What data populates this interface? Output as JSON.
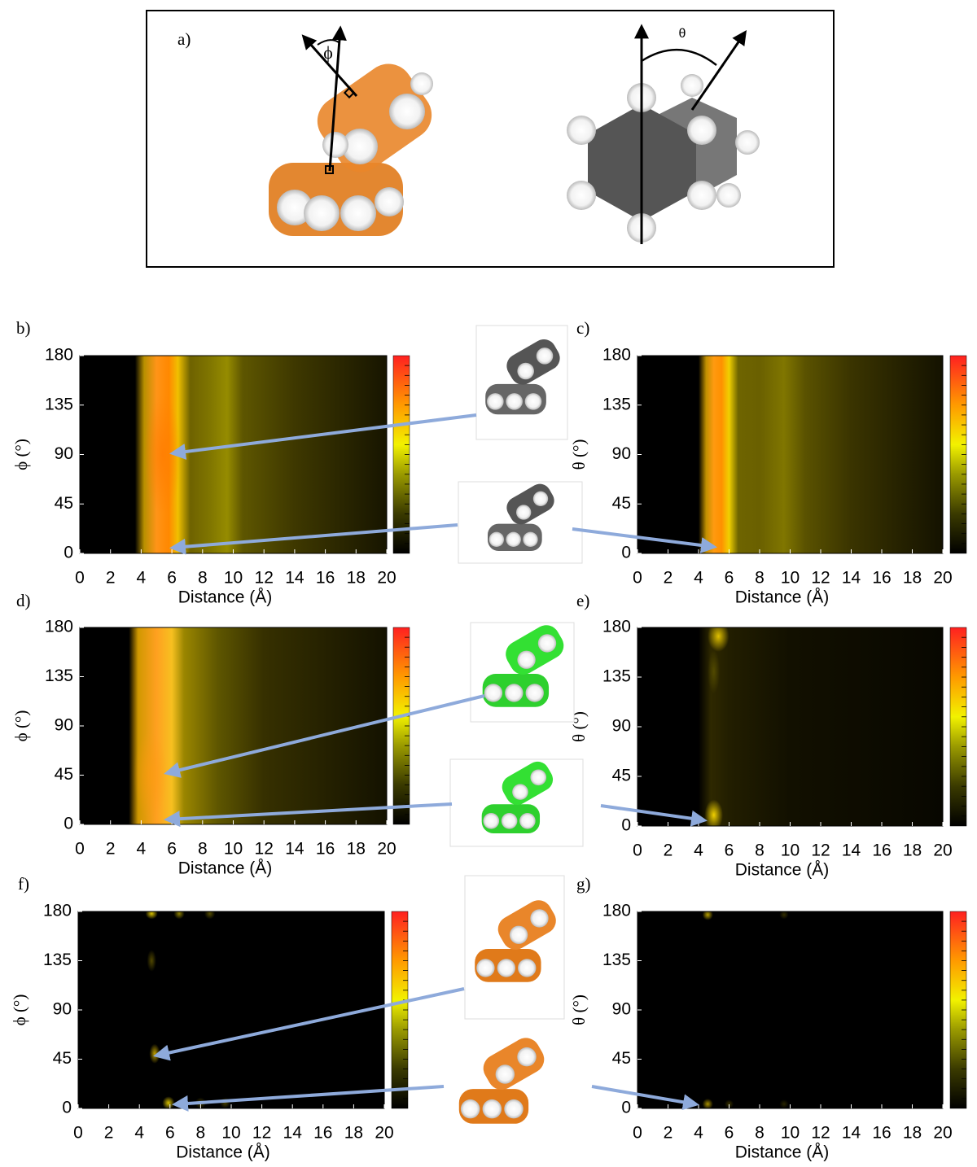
{
  "panel_a": {
    "label": "a)",
    "phi_symbol": "ϕ",
    "theta_symbol": "θ"
  },
  "chart_data": [
    {
      "type": "heatmap",
      "panel_label": "b)",
      "xlabel": "Distance (Å)",
      "ylabel": "ϕ (°)",
      "xlim": [
        0,
        20
      ],
      "ylim": [
        0,
        180
      ],
      "xticks": [
        0,
        2,
        4,
        6,
        8,
        10,
        12,
        14,
        16,
        18,
        20
      ],
      "yticks": [
        0,
        45,
        90,
        135,
        180
      ]
    },
    {
      "type": "heatmap",
      "panel_label": "c)",
      "xlabel": "Distance (Å)",
      "ylabel": "θ (°)",
      "xlim": [
        0,
        20
      ],
      "ylim": [
        0,
        180
      ],
      "xticks": [
        0,
        2,
        4,
        6,
        8,
        10,
        12,
        14,
        16,
        18,
        20
      ],
      "yticks": [
        0,
        45,
        90,
        135,
        180
      ]
    },
    {
      "type": "heatmap",
      "panel_label": "d)",
      "xlabel": "Distance (Å)",
      "ylabel": "ϕ (°)",
      "xlim": [
        0,
        20
      ],
      "ylim": [
        0,
        180
      ],
      "xticks": [
        0,
        2,
        4,
        6,
        8,
        10,
        12,
        14,
        16,
        18,
        20
      ],
      "yticks": [
        0,
        45,
        90,
        135,
        180
      ]
    },
    {
      "type": "heatmap",
      "panel_label": "e)",
      "xlabel": "Distance (Å)",
      "ylabel": "θ (°)",
      "xlim": [
        0,
        20
      ],
      "ylim": [
        0,
        180
      ],
      "xticks": [
        0,
        2,
        4,
        6,
        8,
        10,
        12,
        14,
        16,
        18,
        20
      ],
      "yticks": [
        0,
        45,
        90,
        135,
        180
      ]
    },
    {
      "type": "heatmap",
      "panel_label": "f)",
      "xlabel": "Distance (Å)",
      "ylabel": "ϕ (°)",
      "xlim": [
        0,
        20
      ],
      "ylim": [
        0,
        180
      ],
      "xticks": [
        0,
        2,
        4,
        6,
        8,
        10,
        12,
        14,
        16,
        18,
        20
      ],
      "yticks": [
        0,
        45,
        90,
        135,
        180
      ]
    },
    {
      "type": "heatmap",
      "panel_label": "g)",
      "xlabel": "Distance (Å)",
      "ylabel": "θ (°)",
      "xlim": [
        0,
        20
      ],
      "ylim": [
        0,
        180
      ],
      "xticks": [
        0,
        2,
        4,
        6,
        8,
        10,
        12,
        14,
        16,
        18,
        20
      ],
      "yticks": [
        0,
        45,
        90,
        135,
        180
      ]
    }
  ]
}
